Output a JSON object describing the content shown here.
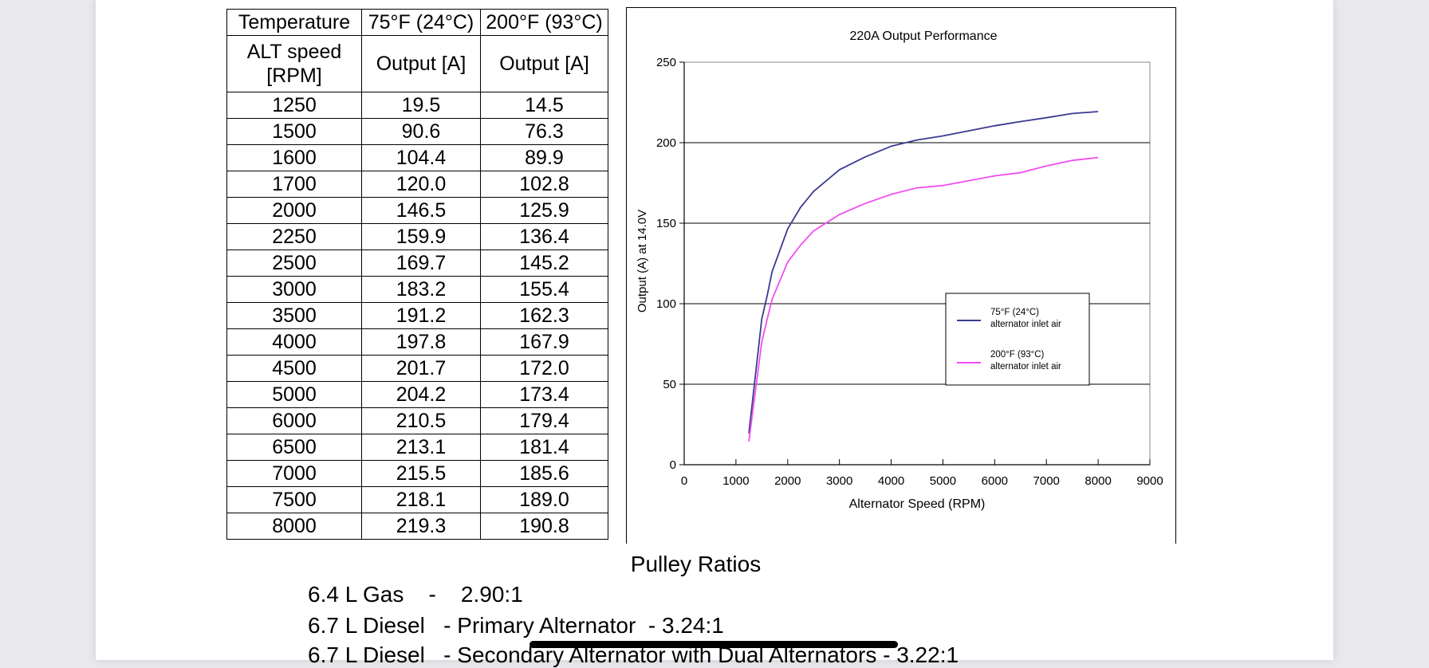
{
  "table": {
    "header_row1": [
      "Temperature",
      "75°F (24°C)",
      "200°F (93°C)"
    ],
    "header_row2": [
      "ALT speed [RPM]",
      "Output [A]",
      "Output [A]"
    ],
    "rows": [
      [
        "1250",
        "19.5",
        "14.5"
      ],
      [
        "1500",
        "90.6",
        "76.3"
      ],
      [
        "1600",
        "104.4",
        "89.9"
      ],
      [
        "1700",
        "120.0",
        "102.8"
      ],
      [
        "2000",
        "146.5",
        "125.9"
      ],
      [
        "2250",
        "159.9",
        "136.4"
      ],
      [
        "2500",
        "169.7",
        "145.2"
      ],
      [
        "3000",
        "183.2",
        "155.4"
      ],
      [
        "3500",
        "191.2",
        "162.3"
      ],
      [
        "4000",
        "197.8",
        "167.9"
      ],
      [
        "4500",
        "201.7",
        "172.0"
      ],
      [
        "5000",
        "204.2",
        "173.4"
      ],
      [
        "6000",
        "210.5",
        "179.4"
      ],
      [
        "6500",
        "213.1",
        "181.4"
      ],
      [
        "7000",
        "215.5",
        "185.6"
      ],
      [
        "7500",
        "218.1",
        "189.0"
      ],
      [
        "8000",
        "219.3",
        "190.8"
      ]
    ]
  },
  "chart_data": {
    "type": "line",
    "title": "220A Output Performance",
    "xlabel": "Alternator Speed (RPM)",
    "ylabel": "Output (A) at 14.0V",
    "xlim": [
      0,
      9000
    ],
    "ylim": [
      0,
      250
    ],
    "xticks": [
      0,
      1000,
      2000,
      3000,
      4000,
      5000,
      6000,
      7000,
      8000,
      9000
    ],
    "yticks": [
      0,
      50,
      100,
      150,
      200,
      250
    ],
    "grid": "horizontal",
    "legend_position": "right",
    "x": [
      1250,
      1500,
      1600,
      1700,
      2000,
      2250,
      2500,
      3000,
      3500,
      4000,
      4500,
      5000,
      6000,
      6500,
      7000,
      7500,
      8000
    ],
    "series": [
      {
        "name": "75°F (24°C) alternator inlet air",
        "legend_lines": [
          "75°F (24°C)",
          "alternator inlet air"
        ],
        "color": "#3b3b8f",
        "values": [
          19.5,
          90.6,
          104.4,
          120.0,
          146.5,
          159.9,
          169.7,
          183.2,
          191.2,
          197.8,
          201.7,
          204.2,
          210.5,
          213.1,
          215.5,
          218.1,
          219.3
        ]
      },
      {
        "name": "200°F (93°C) alternator inlet air",
        "legend_lines": [
          "200°F (93°C)",
          "alternator inlet air"
        ],
        "color": "#f24cf2",
        "values": [
          14.5,
          76.3,
          89.9,
          102.8,
          125.9,
          136.4,
          145.2,
          155.4,
          162.3,
          167.9,
          172.0,
          173.4,
          179.4,
          181.4,
          185.6,
          189.0,
          190.8
        ]
      }
    ]
  },
  "pulley": {
    "title": "Pulley Ratios",
    "lines": [
      "6.4 L Gas    -    2.90:1",
      "6.7 L Diesel   - Primary Alternator  - 3.24:1",
      "6.7 L Diesel   - Secondary Alternator with Dual Alternators - 3.22:1"
    ]
  },
  "colors": {
    "grid": "#000000",
    "redaction": "#000000"
  }
}
